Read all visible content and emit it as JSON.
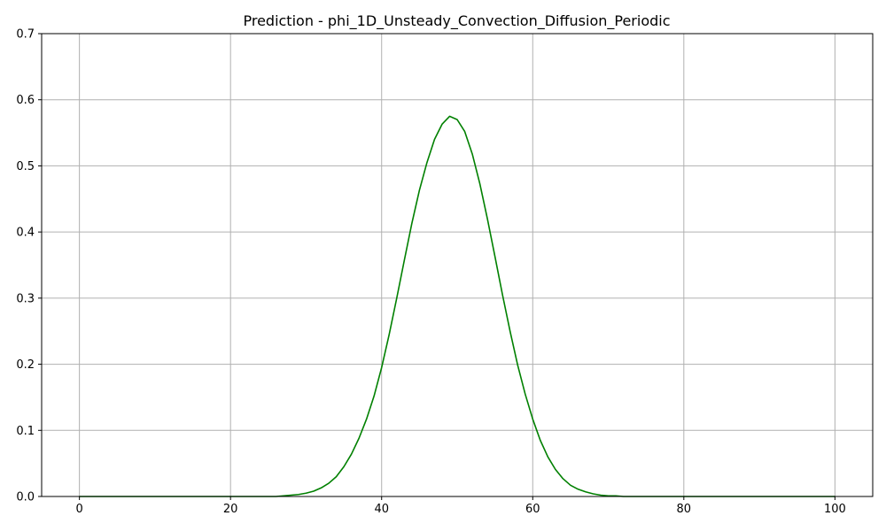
{
  "chart_data": {
    "type": "line",
    "title": "Prediction - phi_1D_Unsteady_Convection_Diffusion_Periodic",
    "xlabel": "",
    "ylabel": "",
    "xlim": [
      -5,
      105
    ],
    "ylim": [
      0.0,
      0.7
    ],
    "xticks": [
      0,
      20,
      40,
      60,
      80,
      100
    ],
    "yticks": [
      0.0,
      0.1,
      0.2,
      0.3,
      0.4,
      0.5,
      0.6,
      0.7
    ],
    "xtick_labels": [
      "0",
      "20",
      "40",
      "60",
      "80",
      "100"
    ],
    "ytick_labels": [
      "0.0",
      "0.1",
      "0.2",
      "0.3",
      "0.4",
      "0.5",
      "0.6",
      "0.7"
    ],
    "grid": true,
    "legend": "none",
    "series": [
      {
        "color": "#008000",
        "x": [
          0,
          1,
          2,
          3,
          4,
          5,
          6,
          7,
          8,
          9,
          10,
          11,
          12,
          13,
          14,
          15,
          16,
          17,
          18,
          19,
          20,
          21,
          22,
          23,
          24,
          25,
          26,
          27,
          28,
          29,
          30,
          31,
          32,
          33,
          34,
          35,
          36,
          37,
          38,
          39,
          40,
          41,
          42,
          43,
          44,
          45,
          46,
          47,
          48,
          49,
          50,
          51,
          52,
          53,
          54,
          55,
          56,
          57,
          58,
          59,
          60,
          61,
          62,
          63,
          64,
          65,
          66,
          67,
          68,
          69,
          70,
          71,
          72,
          73,
          74,
          75,
          76,
          77,
          78,
          79,
          80,
          81,
          82,
          83,
          84,
          85,
          86,
          87,
          88,
          89,
          90,
          91,
          92,
          93,
          94,
          95,
          96,
          97,
          98,
          99,
          100
        ],
        "y": [
          0,
          0,
          0,
          0,
          0,
          0,
          0,
          0,
          0,
          0,
          0,
          0,
          0,
          0,
          0,
          0,
          0,
          0,
          0,
          0,
          0,
          0,
          0,
          0,
          0,
          0,
          0,
          0.001,
          0.002,
          0.003,
          0.005,
          0.008,
          0.013,
          0.02,
          0.03,
          0.045,
          0.064,
          0.088,
          0.117,
          0.152,
          0.195,
          0.245,
          0.3,
          0.357,
          0.413,
          0.463,
          0.505,
          0.54,
          0.563,
          0.575,
          0.57,
          0.552,
          0.518,
          0.473,
          0.42,
          0.363,
          0.305,
          0.25,
          0.199,
          0.155,
          0.117,
          0.085,
          0.06,
          0.041,
          0.027,
          0.017,
          0.011,
          0.007,
          0.004,
          0.002,
          0.001,
          0.001,
          0,
          0,
          0,
          0,
          0,
          0,
          0,
          0,
          0,
          0,
          0,
          0,
          0,
          0,
          0,
          0,
          0,
          0,
          0,
          0,
          0,
          0,
          0,
          0,
          0,
          0,
          0,
          0,
          0
        ]
      }
    ]
  }
}
